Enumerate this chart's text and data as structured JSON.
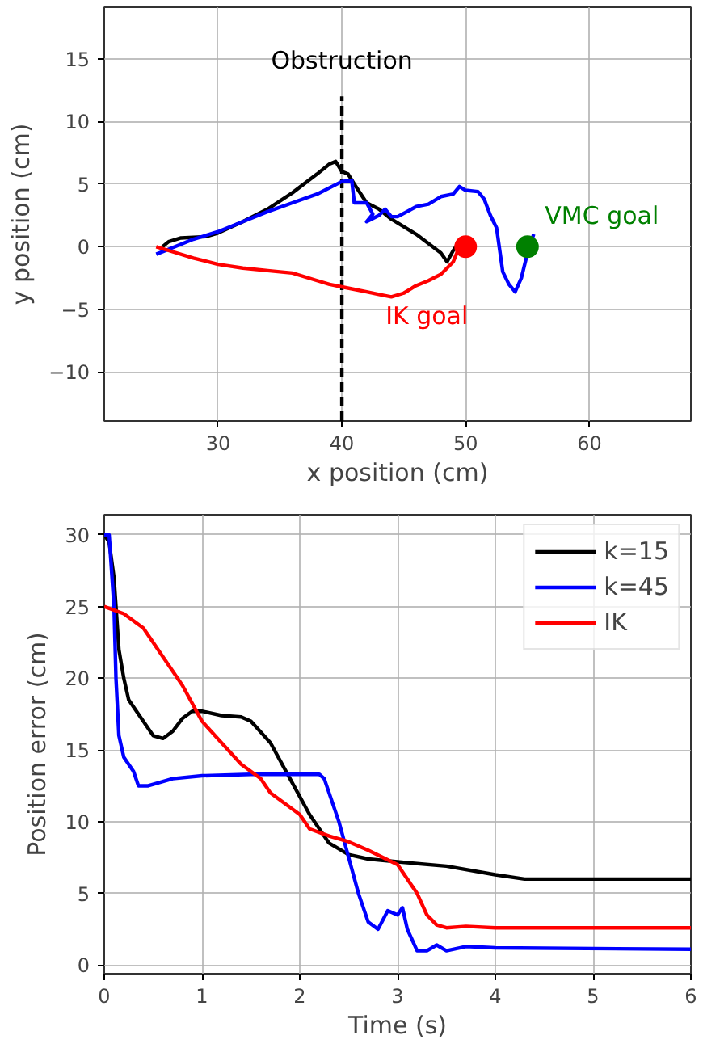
{
  "chart_data": [
    {
      "type": "line",
      "xlabel": "x position (cm)",
      "ylabel": "y position (cm)",
      "xlim": [
        20.8,
        68.2
      ],
      "ylim": [
        -13.9,
        19.1
      ],
      "xticks": [
        30,
        40,
        50,
        60
      ],
      "yticks": [
        -10,
        -5,
        0,
        5,
        10,
        15
      ],
      "grid": true,
      "series": [
        {
          "type": "line",
          "name": "Obstruction",
          "line_style": "dashed",
          "color": "#000000",
          "x": [
            40,
            40
          ],
          "values": [
            -13.9,
            12
          ]
        },
        {
          "type": "line",
          "color": "#000000",
          "x": [
            25.5,
            26,
            27,
            29,
            30,
            32,
            34,
            36,
            38,
            39,
            39.5,
            40,
            40.5,
            41,
            42,
            43,
            44,
            46,
            48,
            48.5,
            49,
            49.5
          ],
          "values": [
            0,
            0.4,
            0.7,
            0.8,
            1.1,
            2,
            3,
            4.3,
            5.8,
            6.6,
            6.8,
            6,
            5.8,
            5,
            3.5,
            3,
            2.2,
            1,
            -0.5,
            -1.2,
            -0.3,
            0.4
          ]
        },
        {
          "type": "line",
          "color": "#0000ff",
          "x": [
            25,
            26,
            28,
            30,
            32,
            34,
            36,
            38,
            40,
            40.8,
            41,
            42,
            42.5,
            42,
            43,
            43.5,
            44,
            44.5,
            46,
            47,
            48,
            49,
            49.5,
            50,
            51,
            51.5,
            52,
            52.5,
            53,
            53.5,
            54,
            54.5,
            55,
            55.5
          ],
          "values": [
            -0.6,
            -0.2,
            0.6,
            1.2,
            2,
            2.8,
            3.5,
            4.2,
            5.2,
            5.3,
            3.5,
            3.5,
            2.6,
            2,
            2.5,
            3,
            2.4,
            2.4,
            3.2,
            3.4,
            4,
            4.2,
            4.8,
            4.5,
            4.4,
            3.8,
            2.5,
            1.5,
            -2,
            -3,
            -3.6,
            -2.5,
            -0.5,
            1
          ]
        },
        {
          "type": "line",
          "color": "#ff0000",
          "x": [
            25,
            26,
            28,
            30,
            32,
            34,
            36,
            38,
            39,
            40,
            42,
            43,
            44,
            45,
            46,
            47,
            48,
            49,
            49.5,
            50
          ],
          "values": [
            0,
            -0.3,
            -0.9,
            -1.4,
            -1.7,
            -1.9,
            -2.1,
            -2.7,
            -3,
            -3.2,
            -3.6,
            -3.8,
            -4,
            -3.7,
            -3.1,
            -2.7,
            -2.2,
            -1.2,
            0,
            0
          ]
        },
        {
          "type": "scatter",
          "name": "IK goal",
          "marker": "circle",
          "color": "#ff0000",
          "x": [
            50
          ],
          "values": [
            0
          ]
        },
        {
          "type": "scatter",
          "name": "VMC goal",
          "marker": "circle",
          "color": "#008000",
          "x": [
            55
          ],
          "values": [
            0
          ]
        }
      ]
    },
    {
      "type": "line",
      "xlabel": "Time (s)",
      "ylabel": "Position error (cm)",
      "xlim": [
        0,
        6
      ],
      "ylim": [
        -0.6,
        31.4
      ],
      "xticks": [
        0,
        1,
        2,
        3,
        4,
        5,
        6
      ],
      "yticks": [
        0,
        5,
        10,
        15,
        20,
        25,
        30
      ],
      "grid": true,
      "legend": "top right",
      "series": [
        {
          "name": "k=15",
          "color": "#000000",
          "x": [
            0,
            0.05,
            0.1,
            0.15,
            0.2,
            0.25,
            0.35,
            0.5,
            0.6,
            0.7,
            0.8,
            0.9,
            1,
            1.2,
            1.4,
            1.5,
            1.7,
            1.9,
            2.1,
            2.3,
            2.5,
            2.7,
            3,
            3.5,
            4,
            4.3,
            6
          ],
          "values": [
            30,
            29.5,
            27,
            22,
            20,
            18.5,
            17.5,
            16,
            15.8,
            16.3,
            17.2,
            17.7,
            17.7,
            17.4,
            17.3,
            17,
            15.5,
            13,
            10.5,
            8.5,
            7.7,
            7.4,
            7.2,
            6.9,
            6.3,
            6,
            6
          ]
        },
        {
          "name": "k=45",
          "color": "#0000ff",
          "x": [
            0,
            0.05,
            0.1,
            0.12,
            0.15,
            0.2,
            0.3,
            0.35,
            0.45,
            0.7,
            1,
            1.5,
            2.2,
            2.25,
            2.4,
            2.5,
            2.6,
            2.7,
            2.8,
            2.9,
            3,
            3.05,
            3.1,
            3.2,
            3.3,
            3.4,
            3.5,
            3.7,
            4,
            6
          ],
          "values": [
            30,
            30,
            25,
            20,
            16,
            14.5,
            13.5,
            12.5,
            12.5,
            13,
            13.2,
            13.3,
            13.3,
            13,
            10,
            7.5,
            5,
            3,
            2.5,
            3.8,
            3.5,
            4,
            2.5,
            1,
            1,
            1.4,
            1,
            1.3,
            1.2,
            1.1
          ]
        },
        {
          "name": "IK",
          "color": "#ff0000",
          "x": [
            0,
            0.2,
            0.4,
            0.6,
            0.8,
            1,
            1.2,
            1.4,
            1.6,
            1.7,
            2,
            2.1,
            2.3,
            2.5,
            2.7,
            3,
            3.2,
            3.3,
            3.4,
            3.5,
            3.7,
            4,
            6
          ],
          "values": [
            25,
            24.5,
            23.5,
            21.5,
            19.5,
            17,
            15.5,
            14,
            13,
            12,
            10.5,
            9.5,
            9,
            8.6,
            8,
            7,
            5,
            3.5,
            2.8,
            2.6,
            2.7,
            2.6,
            2.6
          ]
        }
      ]
    }
  ]
}
